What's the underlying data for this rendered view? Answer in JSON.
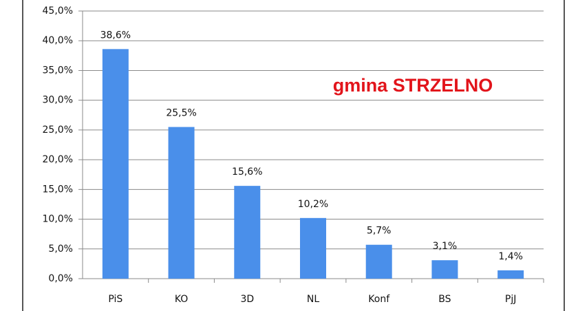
{
  "chart_data": {
    "type": "bar",
    "annotation": "gmina STRZELNO",
    "categories": [
      "PiS",
      "KO",
      "3D",
      "NL",
      "Konf",
      "BS",
      "PjJ"
    ],
    "values": [
      38.6,
      25.5,
      15.6,
      10.2,
      5.7,
      3.1,
      1.4
    ],
    "value_labels": [
      "38,6%",
      "25,5%",
      "15,6%",
      "10,2%",
      "5,7%",
      "3,1%",
      "1,4%"
    ],
    "color": "#4a8fea",
    "ylim": [
      0,
      45
    ],
    "yticks": [
      {
        "value": 0,
        "label": "0,0%"
      },
      {
        "value": 5,
        "label": "5,0%"
      },
      {
        "value": 10,
        "label": "10,0%"
      },
      {
        "value": 15,
        "label": "15,0%"
      },
      {
        "value": 20,
        "label": "20,0%"
      },
      {
        "value": 25,
        "label": "25,0%"
      },
      {
        "value": 30,
        "label": "30,0%"
      },
      {
        "value": 35,
        "label": "35,0%"
      },
      {
        "value": 40,
        "label": "40,0%"
      },
      {
        "value": 45,
        "label": "45,0%"
      }
    ],
    "grid": true
  }
}
